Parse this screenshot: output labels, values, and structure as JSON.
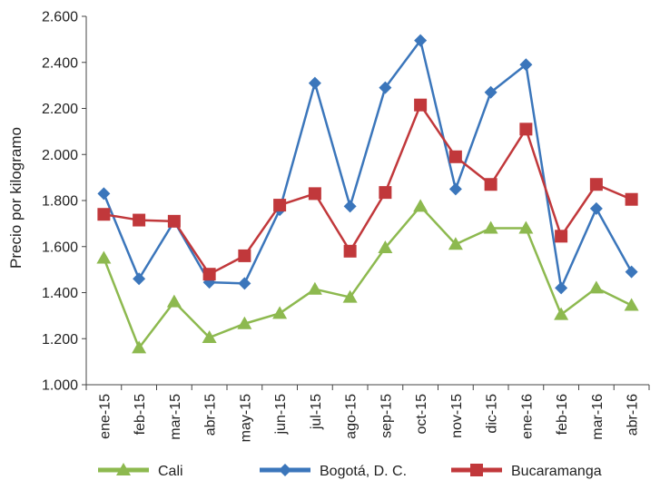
{
  "chart_data": {
    "type": "line",
    "title": "",
    "xlabel": "",
    "ylabel": "Precio por kilogramo",
    "ylim": [
      1000,
      2600
    ],
    "y_step": 200,
    "y_tick_labels": [
      "1.000",
      "1.200",
      "1.400",
      "1.600",
      "1.800",
      "2.000",
      "2.200",
      "2.400",
      "2.600"
    ],
    "grid": false,
    "legend_position": "bottom",
    "categories": [
      "ene-15",
      "feb-15",
      "mar-15",
      "abr-15",
      "may-15",
      "jun-15",
      "jul-15",
      "ago-15",
      "sep-15",
      "oct-15",
      "nov-15",
      "dic-15",
      "ene-16",
      "feb-16",
      "mar-16",
      "abr-16"
    ],
    "series": [
      {
        "name": "Cali",
        "color": "#8db94f",
        "marker": "triangle",
        "values": [
          1550,
          1160,
          1360,
          1205,
          1265,
          1310,
          1415,
          1380,
          1595,
          1775,
          1610,
          1680,
          1680,
          1305,
          1420,
          1345
        ]
      },
      {
        "name": "Bogotá, D. C.",
        "color": "#3b76bb",
        "marker": "diamond",
        "values": [
          1830,
          1460,
          1710,
          1445,
          1440,
          1760,
          2310,
          1775,
          2290,
          2495,
          1850,
          2270,
          2390,
          1420,
          1765,
          1490
        ]
      },
      {
        "name": "Bucaramanga",
        "color": "#c1383b",
        "marker": "square",
        "values": [
          1740,
          1715,
          1710,
          1480,
          1560,
          1780,
          1830,
          1580,
          1835,
          2215,
          1990,
          1870,
          2110,
          1645,
          1870,
          1805
        ]
      }
    ]
  }
}
